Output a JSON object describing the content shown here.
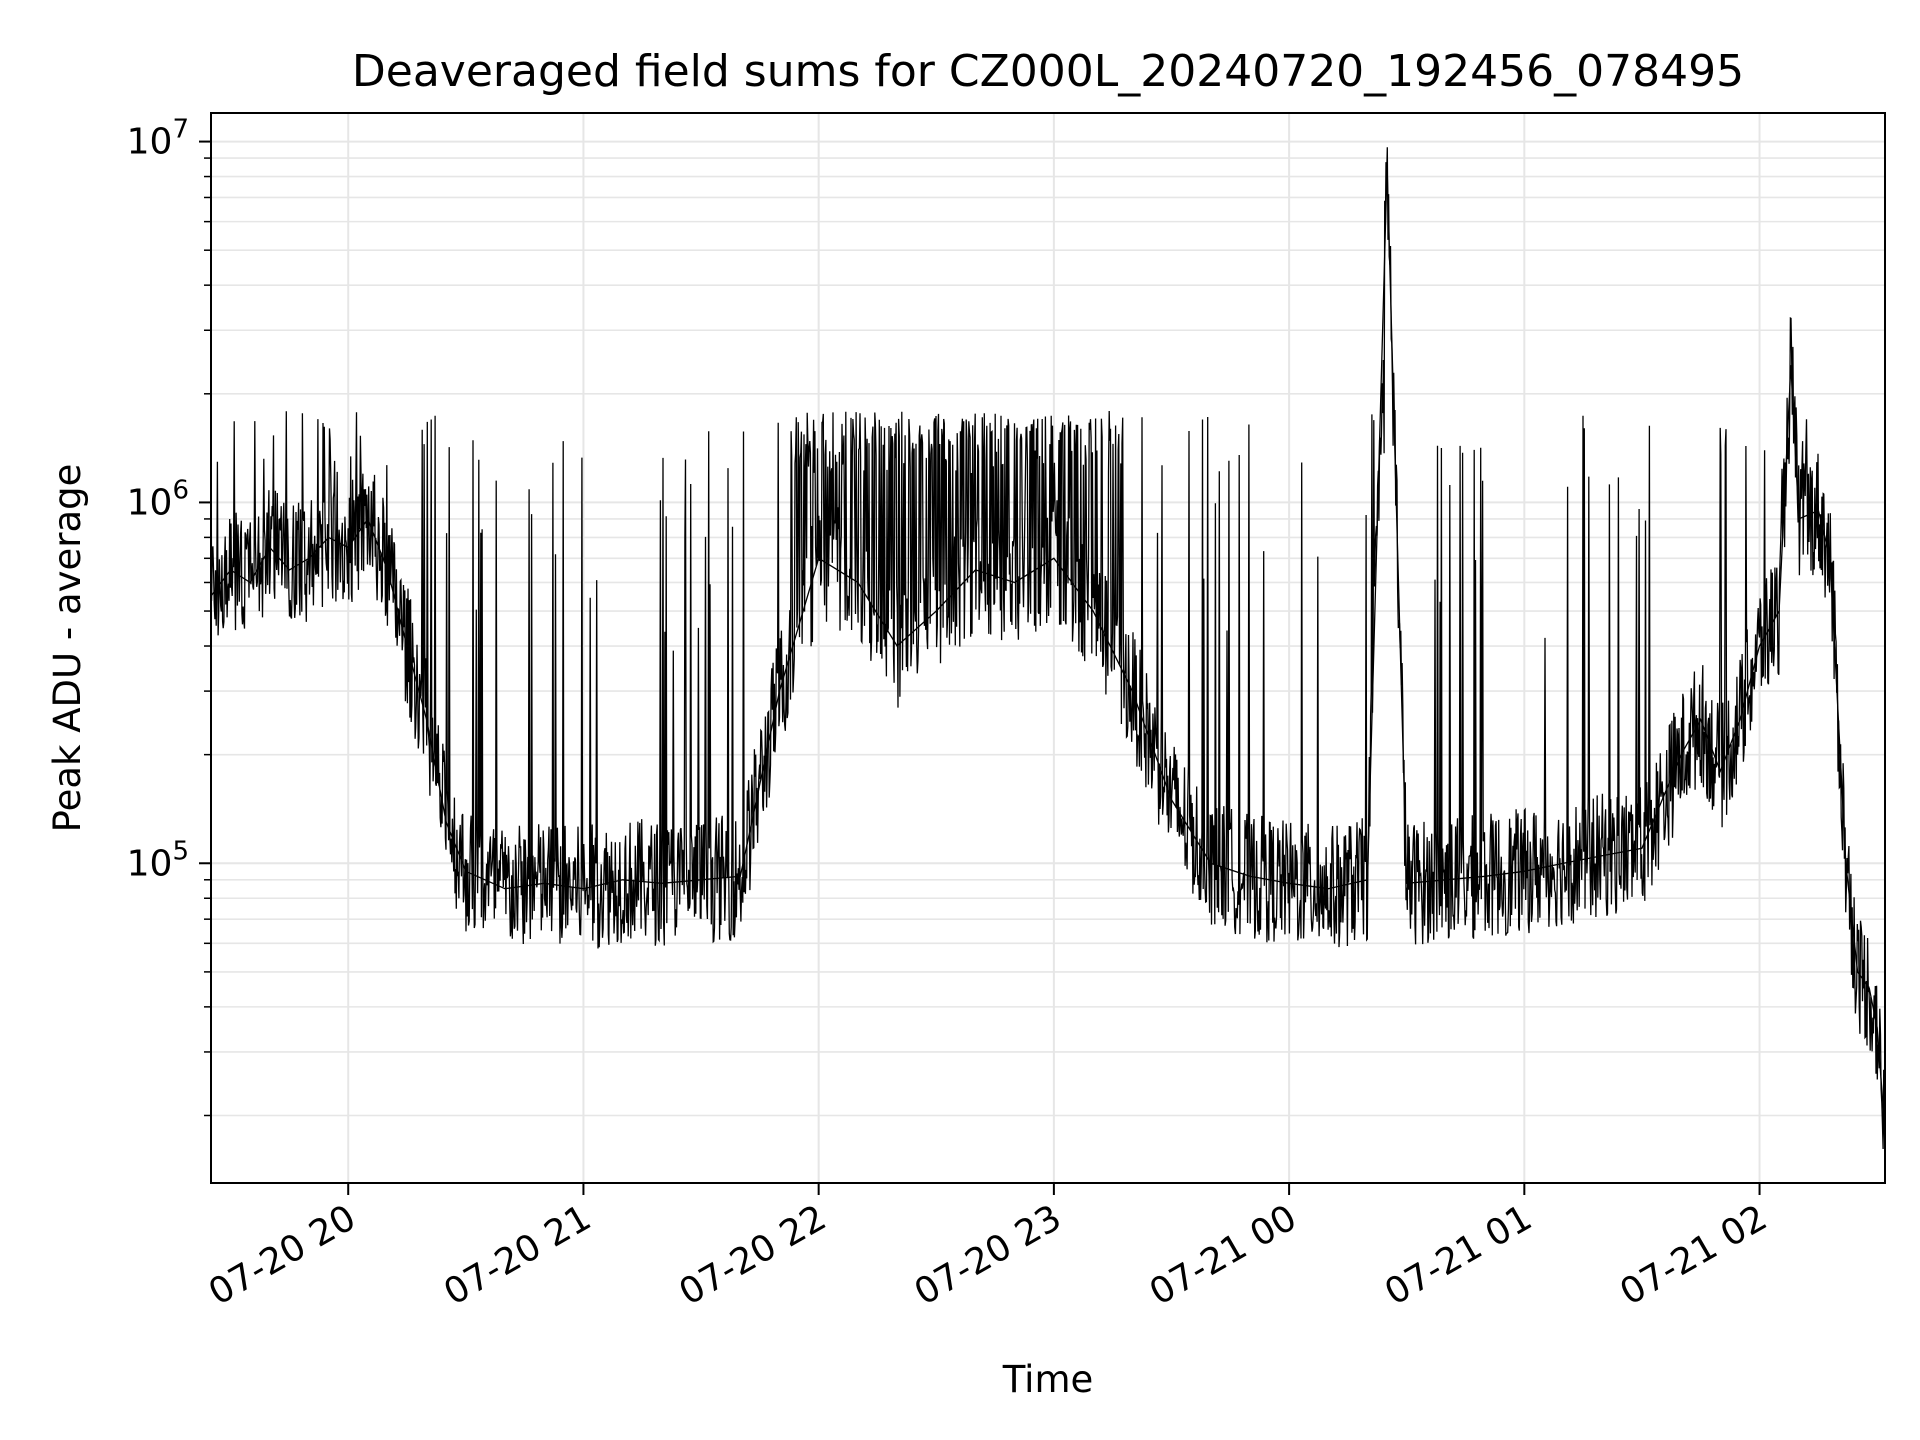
{
  "chart_data": {
    "type": "line",
    "title": "Deaveraged field sums for CZ000L_20240720_192456_078495",
    "xlabel": "Time",
    "ylabel": "Peak ADU - average",
    "yscale": "log",
    "ylim": [
      13000,
      12000000
    ],
    "xlim": [
      "2024-07-20 19:25",
      "2024-07-21 02:32"
    ],
    "grid": true,
    "line_color": "#000000",
    "grid_color": "#e6e6e6",
    "x_ticks": [
      {
        "t": "2024-07-20 20:00",
        "label": "07-20 20"
      },
      {
        "t": "2024-07-20 21:00",
        "label": "07-20 21"
      },
      {
        "t": "2024-07-20 22:00",
        "label": "07-20 22"
      },
      {
        "t": "2024-07-20 23:00",
        "label": "07-20 23"
      },
      {
        "t": "2024-07-21 00:00",
        "label": "07-21 00"
      },
      {
        "t": "2024-07-21 01:00",
        "label": "07-21 01"
      },
      {
        "t": "2024-07-21 02:00",
        "label": "07-21 02"
      }
    ],
    "y_ticks": [
      {
        "v": 100000,
        "base": "10",
        "exp": "5"
      },
      {
        "v": 1000000,
        "base": "10",
        "exp": "6"
      },
      {
        "v": 10000000,
        "base": "10",
        "exp": "7"
      }
    ],
    "series": [
      {
        "points": [
          [
            "2024-07-20 19:25",
            550000
          ],
          [
            "2024-07-20 19:30",
            650000
          ],
          [
            "2024-07-20 19:35",
            600000
          ],
          [
            "2024-07-20 19:40",
            750000
          ],
          [
            "2024-07-20 19:45",
            650000
          ],
          [
            "2024-07-20 19:50",
            700000
          ],
          [
            "2024-07-20 19:55",
            800000
          ],
          [
            "2024-07-20 20:00",
            750000
          ],
          [
            "2024-07-20 20:05",
            900000
          ],
          [
            "2024-07-20 20:10",
            650000
          ],
          [
            "2024-07-20 20:15",
            400000
          ],
          [
            "2024-07-20 20:20",
            250000
          ],
          [
            "2024-07-20 20:25",
            130000
          ],
          [
            "2024-07-20 20:30",
            95000
          ],
          [
            "2024-07-20 20:40",
            85000
          ],
          [
            "2024-07-20 20:50",
            88000
          ],
          [
            "2024-07-20 21:00",
            85000
          ],
          [
            "2024-07-20 21:10",
            90000
          ],
          [
            "2024-07-20 21:20",
            88000
          ],
          [
            "2024-07-20 21:30",
            90000
          ],
          [
            "2024-07-20 21:40",
            92000
          ],
          [
            "2024-07-20 21:50",
            300000
          ],
          [
            "2024-07-20 22:00",
            700000
          ],
          [
            "2024-07-20 22:10",
            600000
          ],
          [
            "2024-07-20 22:20",
            400000
          ],
          [
            "2024-07-20 22:30",
            500000
          ],
          [
            "2024-07-20 22:40",
            650000
          ],
          [
            "2024-07-20 22:50",
            600000
          ],
          [
            "2024-07-20 23:00",
            700000
          ],
          [
            "2024-07-20 23:10",
            500000
          ],
          [
            "2024-07-20 23:20",
            300000
          ],
          [
            "2024-07-20 23:30",
            150000
          ],
          [
            "2024-07-20 23:40",
            100000
          ],
          [
            "2024-07-20 23:50",
            92000
          ],
          [
            "2024-07-21 00:00",
            88000
          ],
          [
            "2024-07-21 00:10",
            85000
          ],
          [
            "2024-07-21 00:20",
            90000
          ],
          [
            "2024-07-21 00:25",
            8500000
          ],
          [
            "2024-07-21 00:30",
            88000
          ],
          [
            "2024-07-21 00:40",
            90000
          ],
          [
            "2024-07-21 00:50",
            92000
          ],
          [
            "2024-07-21 01:00",
            95000
          ],
          [
            "2024-07-21 01:10",
            100000
          ],
          [
            "2024-07-21 01:20",
            105000
          ],
          [
            "2024-07-21 01:30",
            110000
          ],
          [
            "2024-07-21 01:40",
            200000
          ],
          [
            "2024-07-21 01:45",
            250000
          ],
          [
            "2024-07-21 01:50",
            180000
          ],
          [
            "2024-07-21 01:55",
            250000
          ],
          [
            "2024-07-21 02:00",
            400000
          ],
          [
            "2024-07-21 02:05",
            500000
          ],
          [
            "2024-07-21 02:08",
            2400000
          ],
          [
            "2024-07-21 02:10",
            900000
          ],
          [
            "2024-07-21 02:15",
            950000
          ],
          [
            "2024-07-21 02:18",
            700000
          ],
          [
            "2024-07-21 02:22",
            100000
          ],
          [
            "2024-07-21 02:25",
            50000
          ],
          [
            "2024-07-21 02:28",
            45000
          ],
          [
            "2024-07-21 02:30",
            35000
          ],
          [
            "2024-07-21 02:32",
            18000
          ]
        ]
      }
    ]
  }
}
